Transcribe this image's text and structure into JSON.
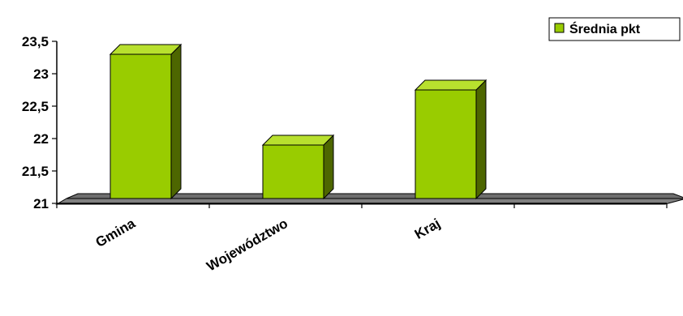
{
  "chart_data": {
    "type": "bar",
    "categories": [
      "Gmina",
      "Województwo",
      "Kraj",
      ""
    ],
    "series": [
      {
        "name": "Średnia pkt",
        "values": [
          23.3,
          21.9,
          22.75,
          null
        ]
      }
    ],
    "ylim": [
      21,
      23.5
    ],
    "yticks": [
      "21",
      "21,5",
      "22",
      "22,5",
      "23",
      "23,5"
    ],
    "grid": false,
    "legend_position": "top-right",
    "colors": {
      "bar_front": "#99cc00",
      "bar_side": "#4d6600",
      "bar_top": "#b8e02e",
      "floor": "#808080",
      "axis": "#000000"
    }
  }
}
